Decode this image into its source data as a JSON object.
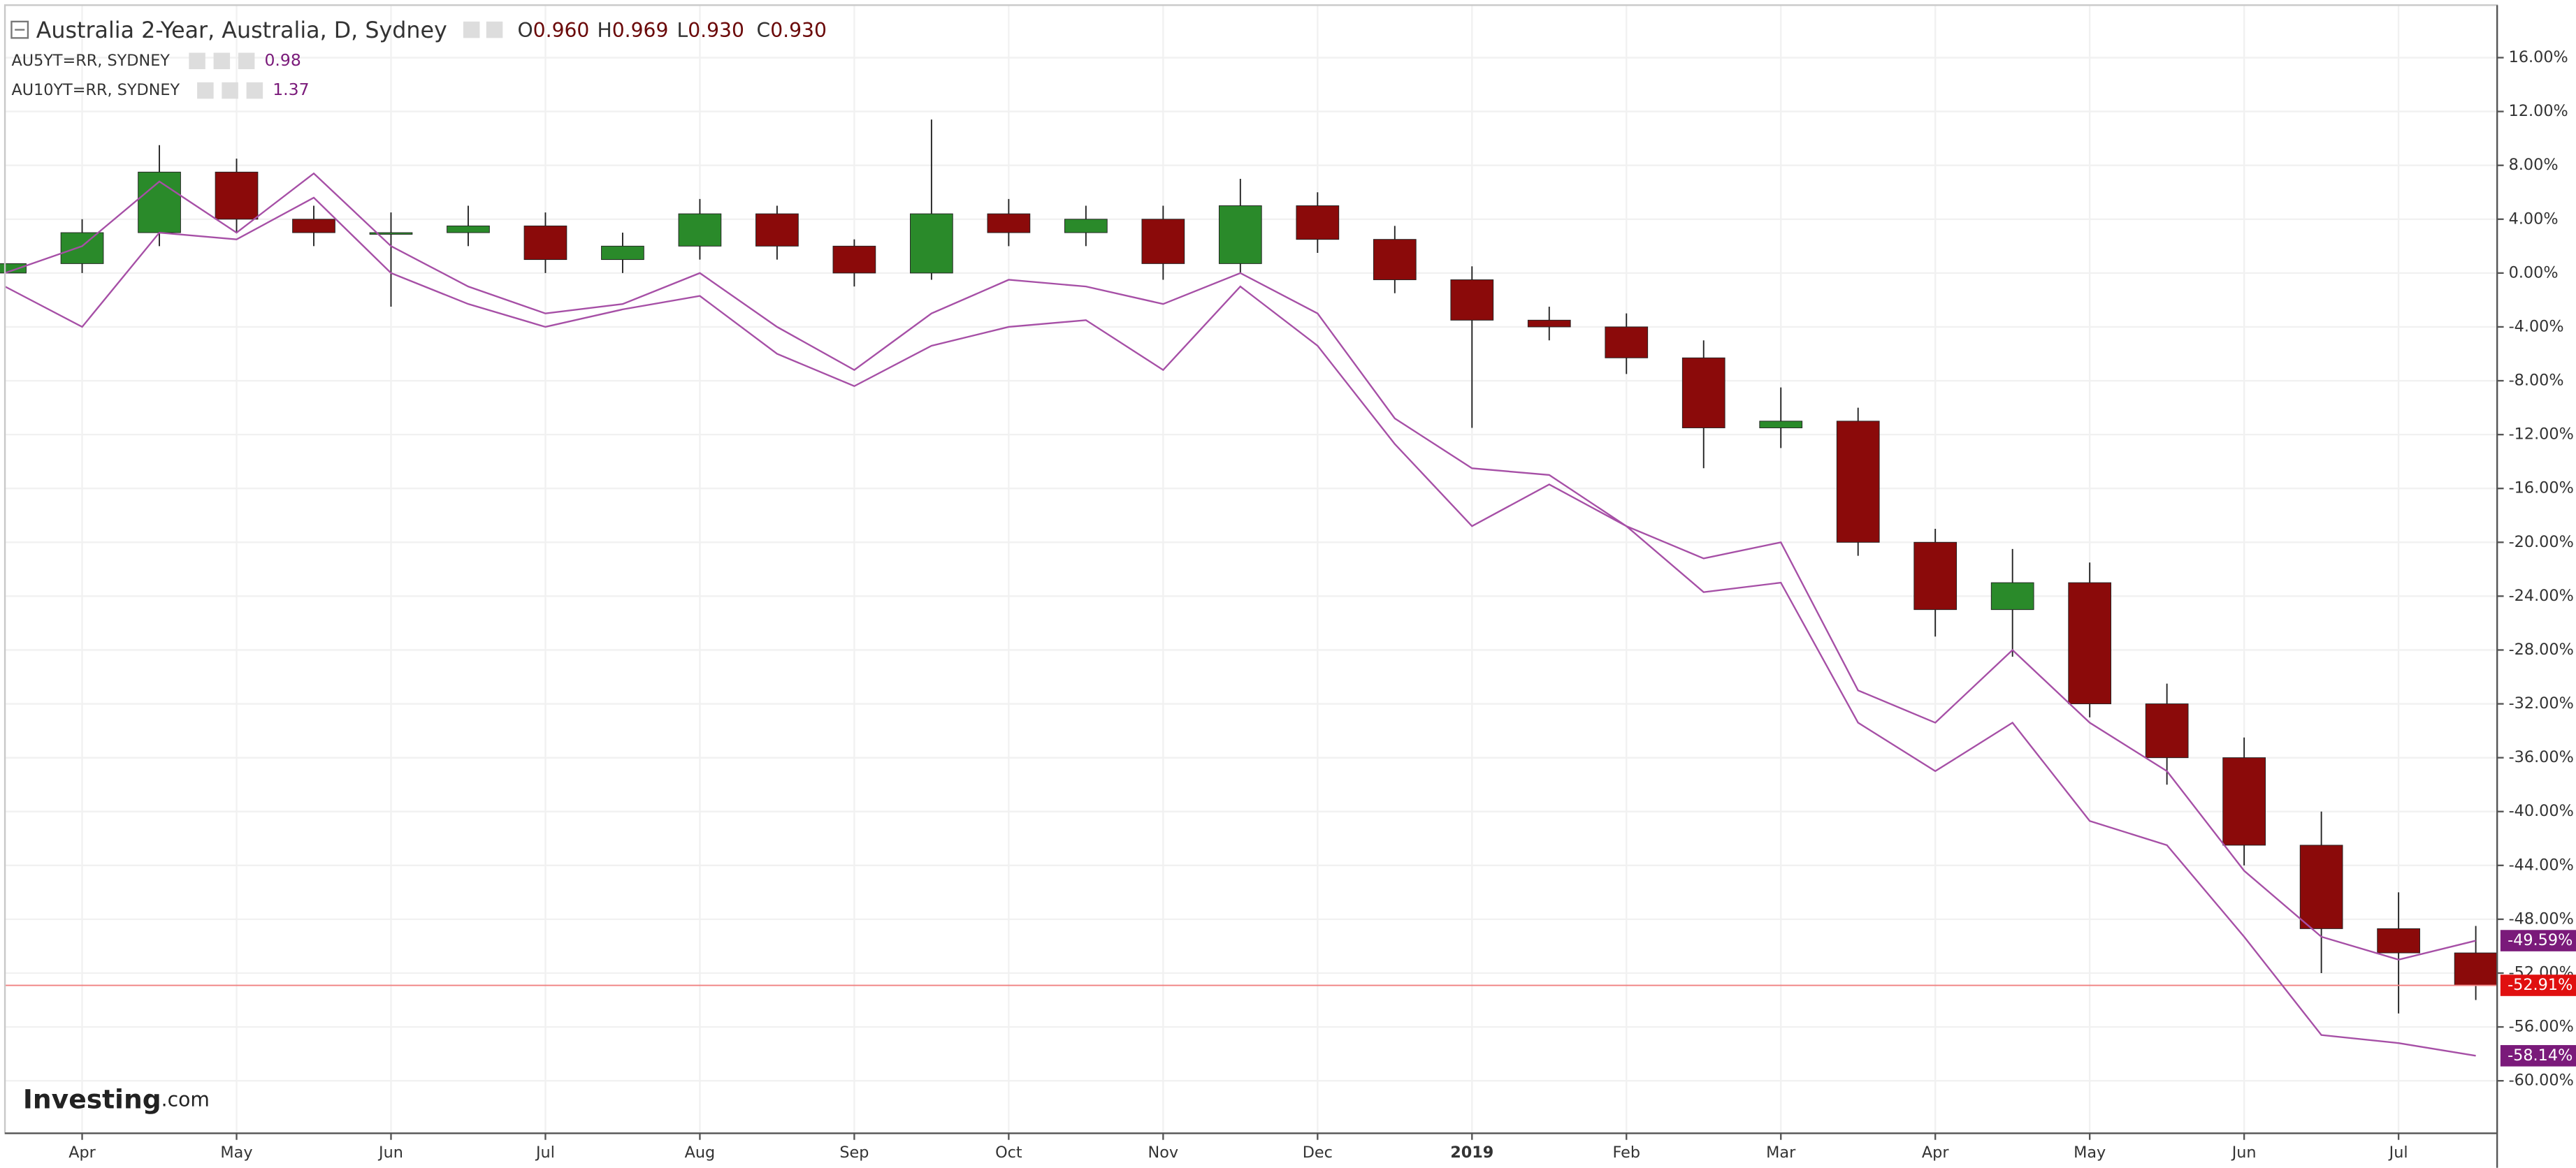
{
  "chart_data": {
    "type": "candlestick",
    "ohlc_header": [
      {
        "label": "O",
        "value": "0.960"
      },
      {
        "label": "H",
        "value": "0.969"
      },
      {
        "label": "L",
        "value": "0.930"
      },
      {
        "label": "C",
        "value": "0.930"
      }
    ],
    "categories": [
      null,
      "Apr",
      null,
      "May",
      null,
      "Jun",
      null,
      "Jul",
      null,
      "Aug",
      null,
      "Sep",
      null,
      "Oct",
      null,
      "Nov",
      null,
      "Dec",
      null,
      "2019",
      null,
      "Feb",
      null,
      "Mar",
      null,
      "Apr",
      null,
      "May",
      null,
      "Jun",
      null,
      "Jul",
      null
    ],
    "series": [
      {
        "name": "Australia 2-Year, Australia, D, Sydney",
        "type": "candlestick",
        "color_up": "#2a8a2a",
        "color_down": "#8b0a0a",
        "open": [
          0,
          0.7,
          3,
          7.5,
          4,
          3,
          3,
          3.5,
          1,
          2,
          4.4,
          2,
          0,
          4.4,
          3,
          4,
          0.7,
          5,
          2.5,
          -0.5,
          -3.5,
          -4,
          -6.3,
          -11.5,
          -11,
          -20,
          -25,
          -23,
          -32,
          -36,
          -42.5,
          -48.7,
          -50.5
        ],
        "high": [
          1.5,
          4,
          9.5,
          8.5,
          5,
          4.5,
          5,
          4.5,
          3,
          5.5,
          5,
          2.5,
          11.4,
          5.5,
          5,
          5,
          7,
          6,
          3.5,
          0.5,
          -2.5,
          -3,
          -5,
          -8.5,
          -10,
          -19,
          -20.5,
          -21.5,
          -30.5,
          -34.5,
          -40,
          -46,
          -48.5
        ],
        "low": [
          -1,
          0,
          2,
          3,
          2,
          -2.5,
          2,
          0,
          0,
          1,
          1,
          -1,
          -0.5,
          2,
          2,
          -0.5,
          0,
          1.5,
          -1.5,
          -11.5,
          -5,
          -7.5,
          -14.5,
          -13,
          -21,
          -27,
          -28.5,
          -33,
          -38,
          -44,
          -52,
          -55,
          -54
        ],
        "close": [
          0.7,
          3,
          7.5,
          4,
          3,
          3,
          3.5,
          1,
          2,
          4.4,
          2,
          0,
          4.4,
          3,
          4,
          0.7,
          5,
          2.5,
          -0.5,
          -3.5,
          -4,
          -6.3,
          -11.5,
          -11,
          -20,
          -25,
          -23,
          -32,
          -36,
          -42.5,
          -48.7,
          -50.5,
          -52.91
        ],
        "value_labels": [
          null,
          null,
          null,
          null,
          null,
          null,
          null,
          null,
          null,
          null,
          null,
          null,
          null,
          null,
          null,
          null,
          null,
          null,
          null,
          null,
          null,
          null,
          null,
          null,
          null,
          null,
          null,
          null,
          null,
          null,
          null,
          null,
          "-52.91%"
        ],
        "label_color": "#e01010"
      },
      {
        "name": "AU5YT=RR, SYDNEY",
        "type": "line",
        "color": "#a64fa6",
        "last": "0.98",
        "label_color": "#7a1a7a",
        "values": [
          0,
          2,
          6.8,
          3,
          7.4,
          2,
          -1,
          -3,
          -2.3,
          0,
          -4,
          -7.2,
          -3,
          -0.5,
          -1,
          -2.3,
          0,
          -3,
          -10.8,
          -14.5,
          -15,
          -18.8,
          -21.2,
          -20,
          -31,
          -33.4,
          -28,
          -33.4,
          -37,
          -44.4,
          -49.3,
          -51,
          -49.59
        ],
        "value_labels": [
          null,
          null,
          null,
          null,
          null,
          null,
          null,
          null,
          null,
          null,
          null,
          null,
          null,
          null,
          null,
          null,
          null,
          null,
          null,
          null,
          null,
          null,
          null,
          null,
          null,
          null,
          null,
          null,
          null,
          null,
          null,
          null,
          "-49.59%"
        ]
      },
      {
        "name": "AU10YT=RR, SYDNEY",
        "type": "line",
        "color": "#a64fa6",
        "last": "1.37",
        "label_color": "#7a1a7a",
        "values": [
          -1,
          -4,
          3,
          2.5,
          5.6,
          0,
          -2.3,
          -4,
          -2.7,
          -1.7,
          -6,
          -8.4,
          -5.4,
          -4,
          -3.5,
          -7.2,
          -1,
          -5.4,
          -12.7,
          -18.8,
          -15.7,
          -18.8,
          -23.7,
          -23,
          -33.4,
          -37,
          -33.4,
          -40.7,
          -42.5,
          -49.3,
          -56.6,
          -57.2,
          -58.14
        ],
        "value_labels": [
          null,
          null,
          null,
          null,
          null,
          null,
          null,
          null,
          null,
          null,
          null,
          null,
          null,
          null,
          null,
          null,
          null,
          null,
          null,
          null,
          null,
          null,
          null,
          null,
          null,
          null,
          null,
          null,
          null,
          null,
          null,
          null,
          "-58.14%"
        ]
      }
    ],
    "ylim": [
      -63.9,
      19.9
    ],
    "yticks": [
      {
        "value": 16,
        "label": "16.00%"
      },
      {
        "value": 12,
        "label": "12.00%"
      },
      {
        "value": 8,
        "label": "8.00%"
      },
      {
        "value": 4,
        "label": "4.00%"
      },
      {
        "value": 0,
        "label": "0.00%"
      },
      {
        "value": -4,
        "label": "-4.00%"
      },
      {
        "value": -8,
        "label": "-8.00%"
      },
      {
        "value": -12,
        "label": "-12.00%"
      },
      {
        "value": -16,
        "label": "-16.00%"
      },
      {
        "value": -20,
        "label": "-20.00%"
      },
      {
        "value": -24,
        "label": "-24.00%"
      },
      {
        "value": -28,
        "label": "-28.00%"
      },
      {
        "value": -32,
        "label": "-32.00%"
      },
      {
        "value": -36,
        "label": "-36.00%"
      },
      {
        "value": -40,
        "label": "-40.00%"
      },
      {
        "value": -44,
        "label": "-44.00%"
      },
      {
        "value": -48,
        "label": "-48.00%"
      },
      {
        "value": -52,
        "label": "-52.00%"
      },
      {
        "value": -56,
        "label": "-56.00%"
      },
      {
        "value": -60,
        "label": "-60.00%"
      }
    ],
    "grid": true,
    "watermark": {
      "brand": "Investing",
      "suffix": ".com"
    }
  }
}
